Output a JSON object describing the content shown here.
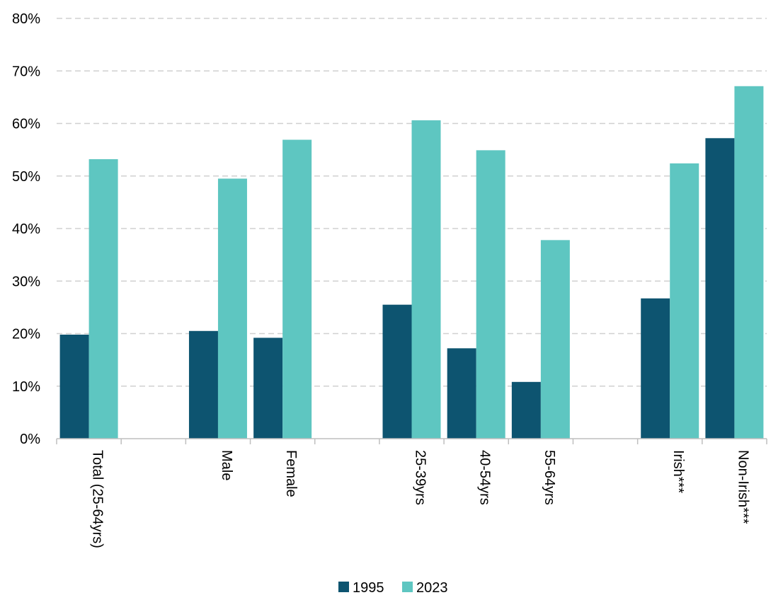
{
  "chart_data": {
    "type": "bar",
    "categories": [
      "Total (25-64yrs)",
      "",
      "Male",
      "Female",
      "",
      "25-39yrs",
      "40-54yrs",
      "55-64yrs",
      "",
      "Irish***",
      "Non-Irish***"
    ],
    "series": [
      {
        "name": "1995",
        "color": "#0d5470",
        "values": [
          19.8,
          null,
          20.5,
          19.2,
          null,
          25.5,
          17.2,
          10.8,
          null,
          26.7,
          57.2
        ]
      },
      {
        "name": "2023",
        "color": "#5ec6c1",
        "values": [
          53.2,
          null,
          49.5,
          56.9,
          null,
          60.6,
          54.9,
          37.8,
          null,
          52.4,
          67.1
        ]
      }
    ],
    "y_ticks": [
      "0%",
      "10%",
      "20%",
      "30%",
      "40%",
      "50%",
      "60%",
      "70%",
      "80%"
    ],
    "ylim": [
      0,
      80
    ],
    "grid": "horizontal dashed",
    "legend_position": "bottom-center"
  }
}
